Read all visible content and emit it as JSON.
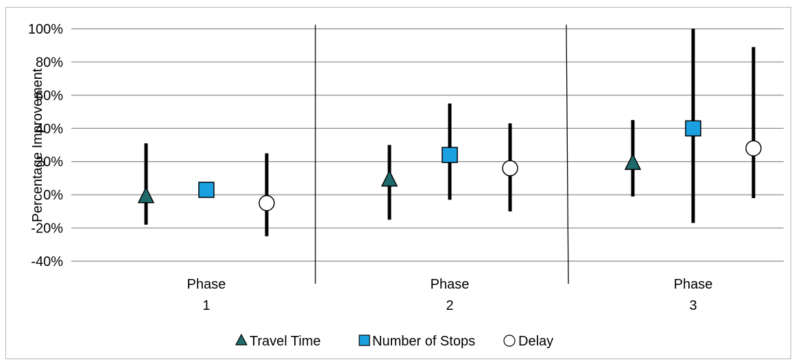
{
  "chart_data": {
    "type": "scatter",
    "title": "",
    "xlabel": "",
    "ylabel": "Percentage Improvement",
    "ylim": [
      -40,
      100
    ],
    "yticks": [
      "-40%",
      "-20%",
      "0%",
      "20%",
      "40%",
      "60%",
      "80%",
      "100%"
    ],
    "grid": true,
    "legend_position": "bottom",
    "categories": [
      {
        "line1": "Phase",
        "line2": "1"
      },
      {
        "line1": "Phase",
        "line2": "2"
      },
      {
        "line1": "Phase",
        "line2": "3"
      }
    ],
    "series": [
      {
        "name": "Travel Time",
        "marker": "triangle",
        "color": "#1f6b6b",
        "points": [
          {
            "category": "Phase 1",
            "value": -1,
            "low": -18,
            "high": 31
          },
          {
            "category": "Phase 2",
            "value": 9,
            "low": -15,
            "high": 30
          },
          {
            "category": "Phase 3",
            "value": 19,
            "low": -1,
            "high": 45
          }
        ]
      },
      {
        "name": "Number of Stops",
        "marker": "square",
        "color": "#1ba1e2",
        "points": [
          {
            "category": "Phase 1",
            "value": 3,
            "low": 3,
            "high": 3
          },
          {
            "category": "Phase 2",
            "value": 24,
            "low": -3,
            "high": 55
          },
          {
            "category": "Phase 3",
            "value": 40,
            "low": -17,
            "high": 100
          }
        ]
      },
      {
        "name": "Delay",
        "marker": "circle",
        "color": "#ffffff",
        "points": [
          {
            "category": "Phase 1",
            "value": -5,
            "low": -25,
            "high": 25
          },
          {
            "category": "Phase 2",
            "value": 16,
            "low": -10,
            "high": 43
          },
          {
            "category": "Phase 3",
            "value": 28,
            "low": -2,
            "high": 89
          }
        ]
      }
    ]
  }
}
